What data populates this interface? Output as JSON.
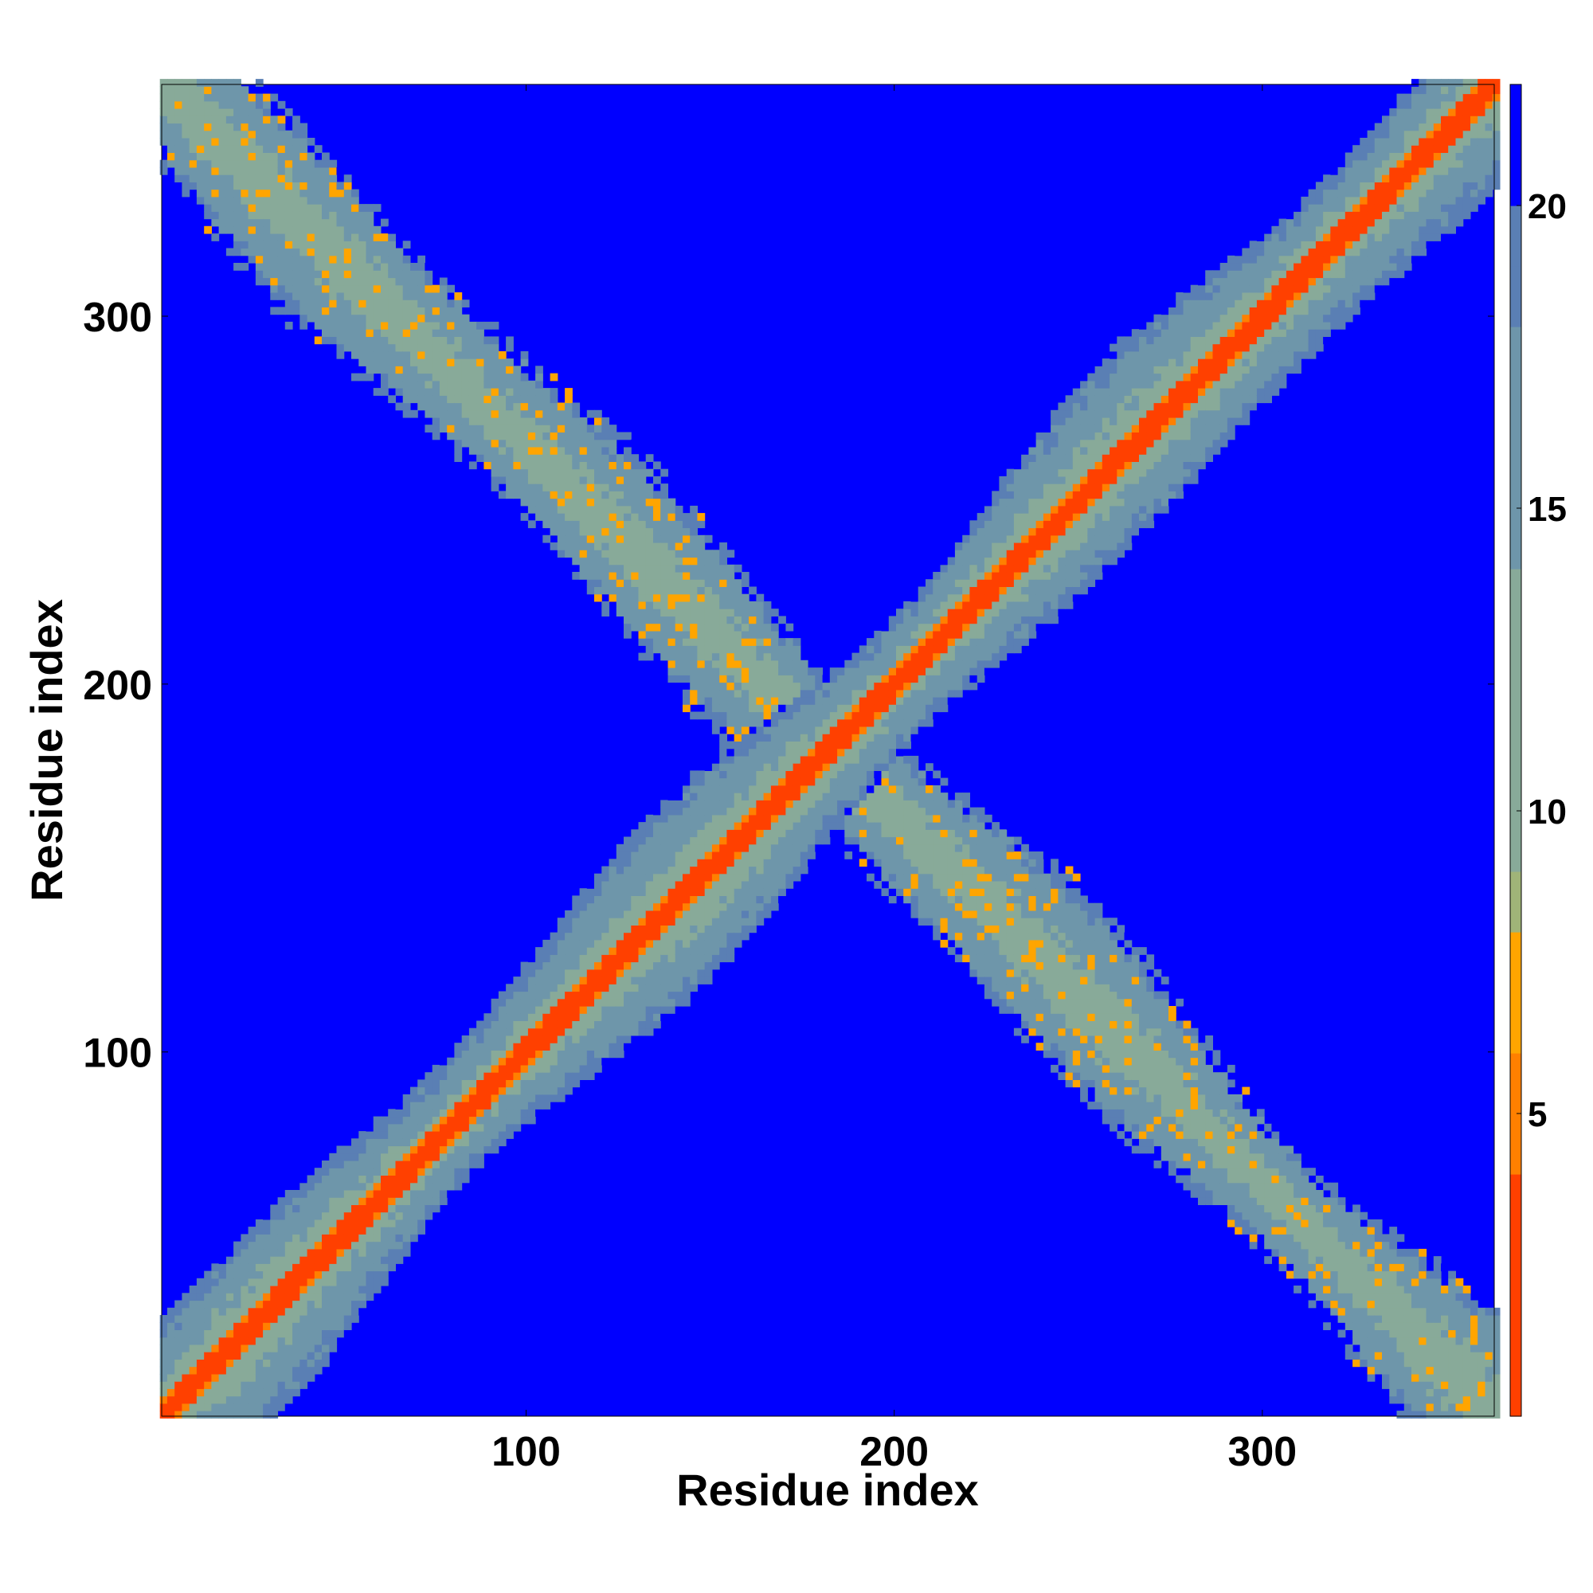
{
  "chart_data": {
    "type": "heatmap",
    "title": "",
    "xlabel": "Residue index",
    "ylabel": "Residue index",
    "xlim": [
      1,
      363
    ],
    "ylim": [
      1,
      363
    ],
    "x_ticks": [
      100,
      200,
      300
    ],
    "y_ticks": [
      100,
      200,
      300
    ],
    "colorbar": {
      "range": [
        0,
        22
      ],
      "ticks": [
        5,
        10,
        15,
        20
      ],
      "stops": [
        {
          "value": 0,
          "color": "#ff0000"
        },
        {
          "value": 4,
          "color": "#ff4000"
        },
        {
          "value": 6,
          "color": "#ff8000"
        },
        {
          "value": 8,
          "color": "#ffa500"
        },
        {
          "value": 9,
          "color": "#a0b478"
        },
        {
          "value": 14,
          "color": "#88aa99"
        },
        {
          "value": 18,
          "color": "#6e96aa"
        },
        {
          "value": 20,
          "color": "#5a7fb4"
        },
        {
          "value": 20.5,
          "color": "#0000ff"
        },
        {
          "value": 22,
          "color": "#0000ff"
        }
      ]
    },
    "background_color": "#0000ff",
    "features": [
      {
        "name": "main diagonal",
        "from": [
          1,
          1
        ],
        "to": [
          363,
          363
        ]
      },
      {
        "name": "anti-diagonal",
        "from": [
          1,
          363
        ],
        "to": [
          363,
          1
        ]
      }
    ]
  }
}
